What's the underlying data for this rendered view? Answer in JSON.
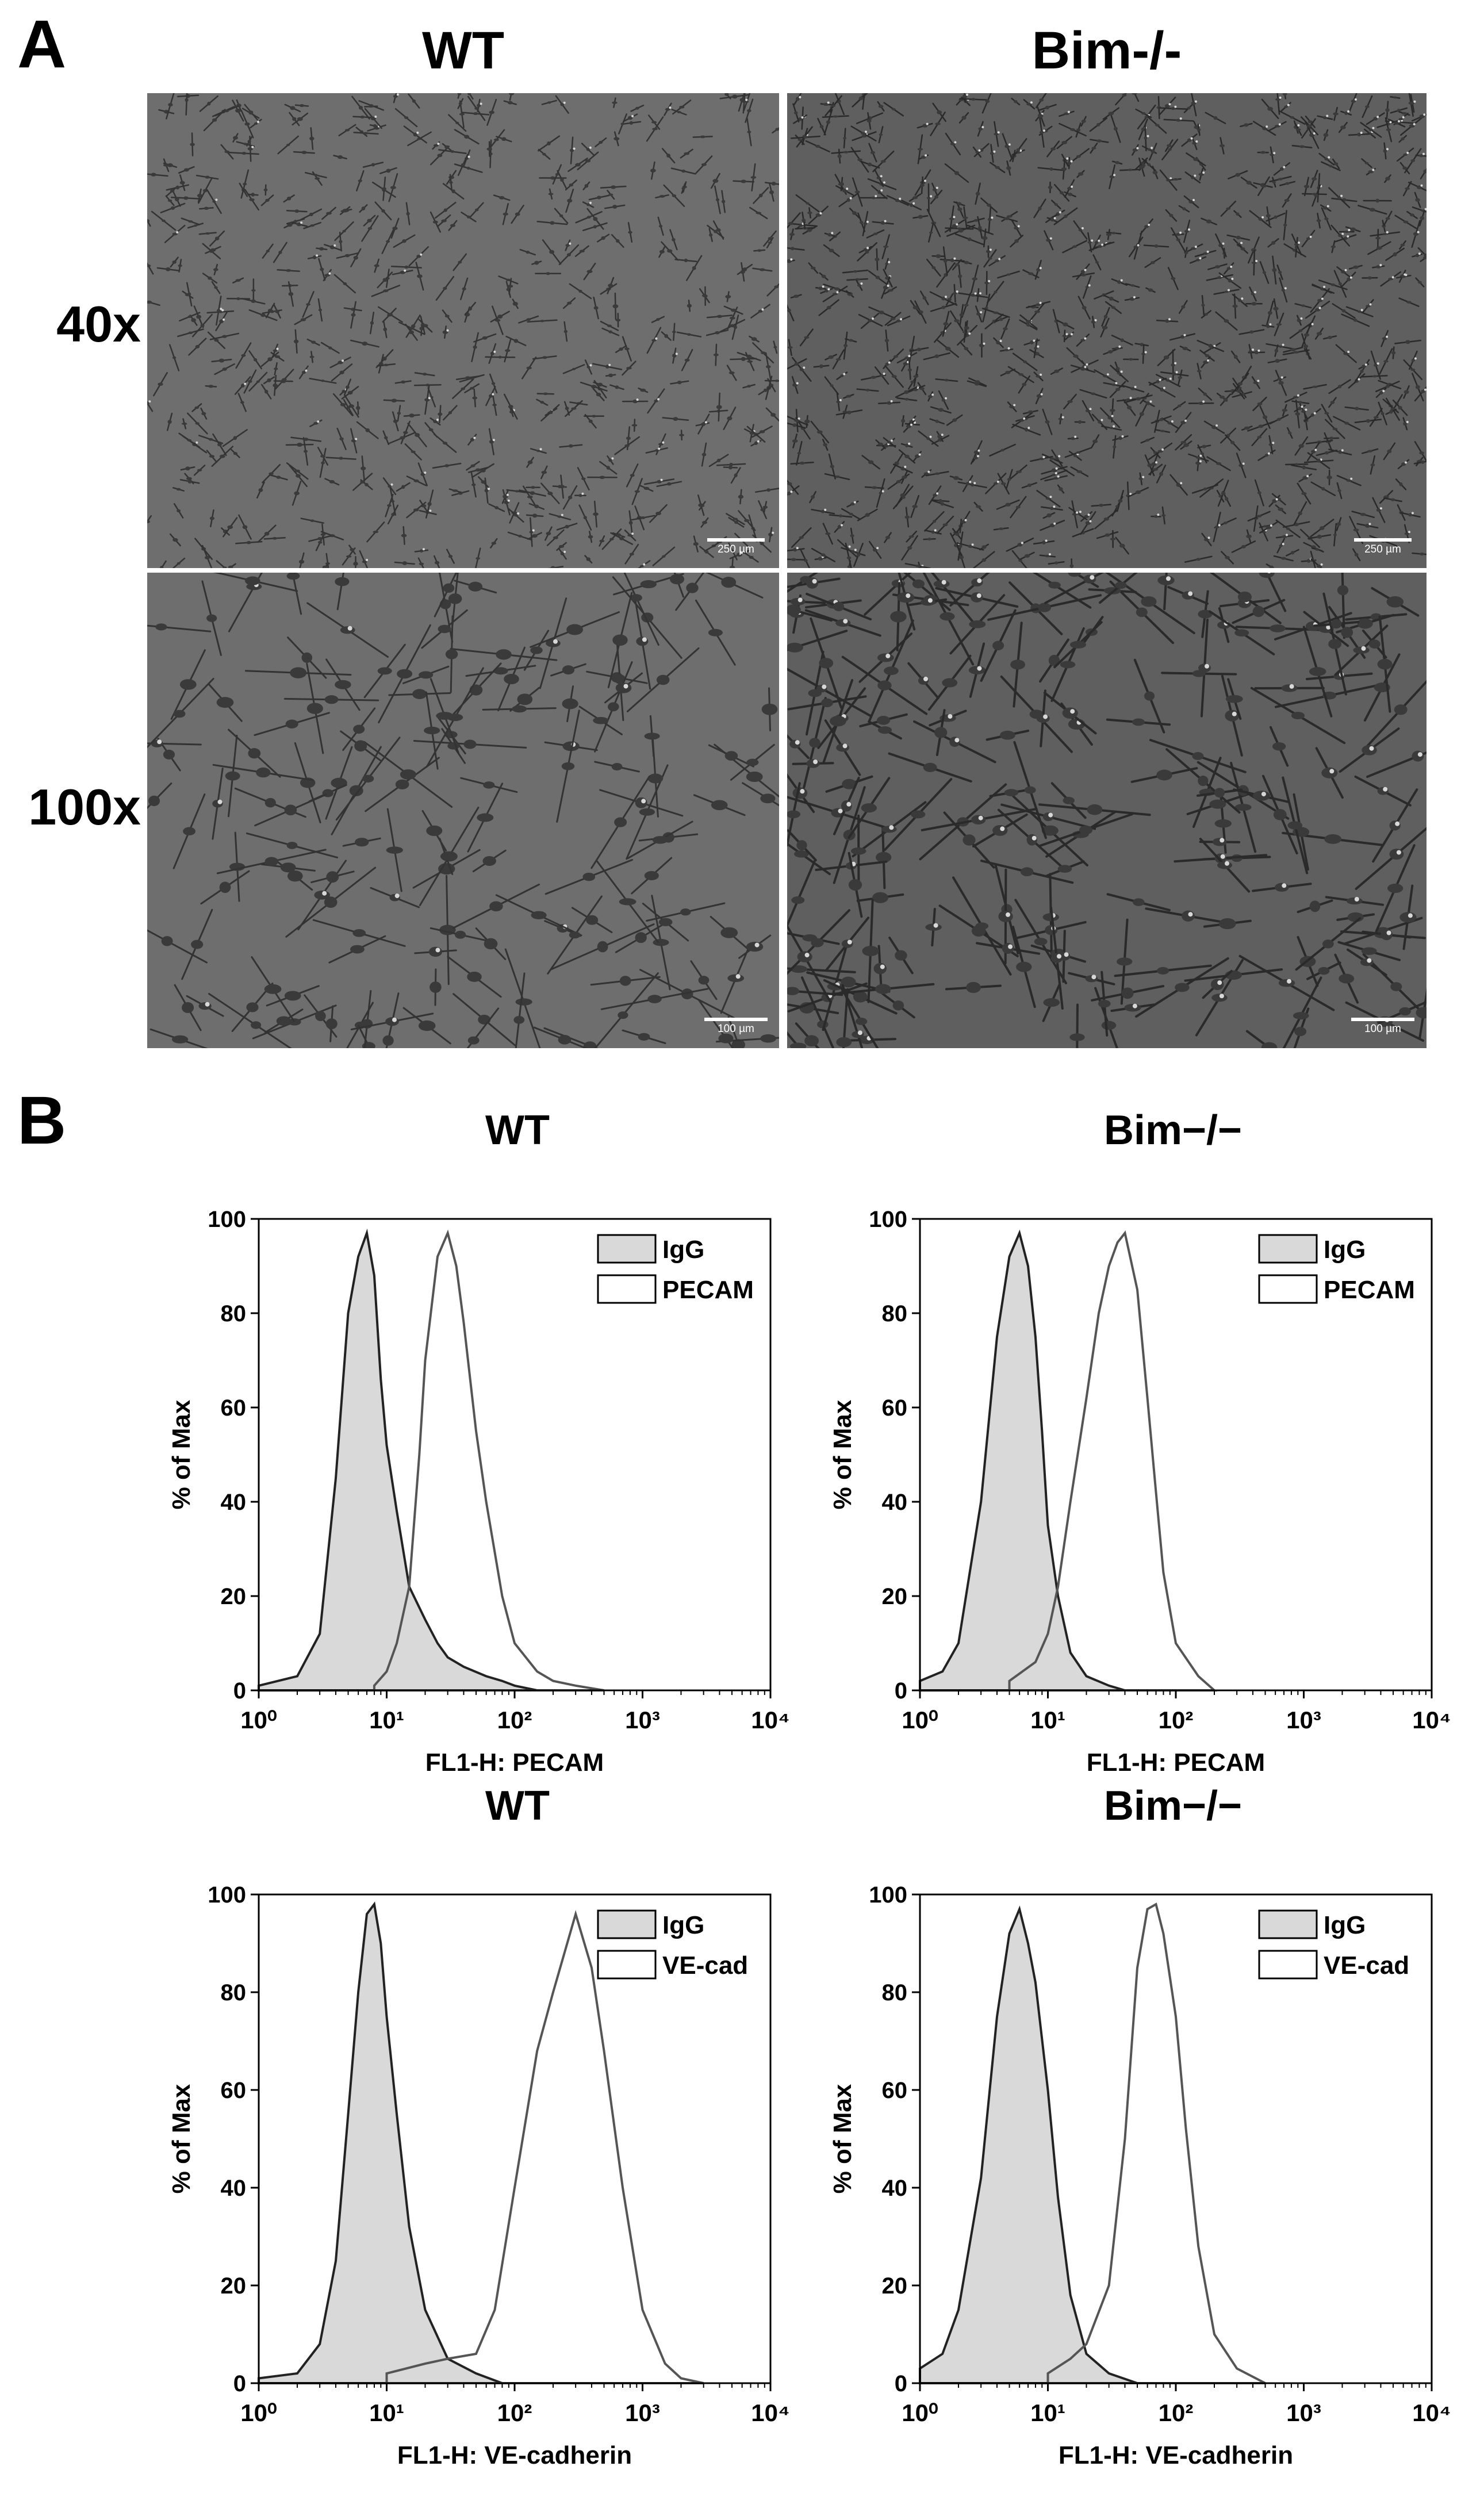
{
  "panelA": {
    "letter": "A",
    "col_titles": [
      "WT",
      "Bim-/-"
    ],
    "row_labels": [
      "40x",
      "100x"
    ],
    "images": [
      {
        "name": "wt-40x",
        "scale_label": "250 µm",
        "seed": 11,
        "density": 650,
        "style": "sparse-small"
      },
      {
        "name": "bim-40x",
        "scale_label": "250 µm",
        "seed": 29,
        "density": 900,
        "style": "network-small"
      },
      {
        "name": "wt-100x",
        "scale_label": "100 µm",
        "seed": 43,
        "density": 170,
        "style": "sparse-large"
      },
      {
        "name": "bim-100x",
        "scale_label": "100 µm",
        "seed": 67,
        "density": 230,
        "style": "network-large"
      }
    ]
  },
  "panelB": {
    "letter": "B",
    "chart_data": [
      {
        "type": "area",
        "title": "WT",
        "xlabel": "FL1-H: PECAM",
        "ylabel": "% of Max",
        "xscale": "log",
        "xlim": [
          1,
          10000
        ],
        "ylim": [
          0,
          100
        ],
        "xticks": [
          "10⁰",
          "10¹",
          "10²",
          "10³",
          "10⁴"
        ],
        "yticks": [
          "0",
          "20",
          "40",
          "60",
          "80",
          "100"
        ],
        "legend_position": "top-right",
        "series": [
          {
            "name": "IgG",
            "fill": "#d9d9d9",
            "x": [
              1,
              2,
              3,
              4,
              5,
              6,
              7,
              8,
              9,
              10,
              12,
              15,
              20,
              25,
              30,
              40,
              60,
              80,
              100,
              150
            ],
            "y": [
              1,
              3,
              12,
              45,
              80,
              92,
              97,
              88,
              66,
              52,
              38,
              22,
              15,
              10,
              7,
              5,
              3,
              2,
              1,
              0
            ]
          },
          {
            "name": "PECAM",
            "fill": "#ffffff",
            "x": [
              8,
              10,
              12,
              15,
              18,
              20,
              25,
              30,
              35,
              40,
              50,
              60,
              80,
              100,
              150,
              200,
              300,
              500
            ],
            "y": [
              1,
              4,
              10,
              22,
              50,
              70,
              92,
              97,
              90,
              78,
              55,
              40,
              20,
              10,
              4,
              2,
              1,
              0
            ]
          }
        ]
      },
      {
        "type": "area",
        "title": "Bim−/−",
        "xlabel": "FL1-H: PECAM",
        "ylabel": "% of Max",
        "xscale": "log",
        "xlim": [
          1,
          10000
        ],
        "ylim": [
          0,
          100
        ],
        "xticks": [
          "10⁰",
          "10¹",
          "10²",
          "10³",
          "10⁴"
        ],
        "yticks": [
          "0",
          "20",
          "40",
          "60",
          "80",
          "100"
        ],
        "legend_position": "top-right",
        "series": [
          {
            "name": "IgG",
            "fill": "#d9d9d9",
            "x": [
              1,
              1.5,
              2,
              3,
              4,
              5,
              6,
              7,
              8,
              9,
              10,
              12,
              15,
              20,
              30,
              40
            ],
            "y": [
              2,
              4,
              10,
              40,
              75,
              92,
              97,
              90,
              75,
              55,
              35,
              20,
              8,
              3,
              1,
              0
            ]
          },
          {
            "name": "PECAM",
            "fill": "#ffffff",
            "x": [
              5,
              8,
              10,
              12,
              15,
              20,
              25,
              30,
              35,
              40,
              50,
              60,
              70,
              80,
              100,
              150,
              200
            ],
            "y": [
              2,
              6,
              12,
              22,
              40,
              62,
              80,
              90,
              95,
              97,
              85,
              62,
              42,
              25,
              10,
              3,
              0
            ]
          }
        ]
      },
      {
        "type": "area",
        "title": "WT",
        "xlabel": "FL1-H: VE-cadherin",
        "ylabel": "% of Max",
        "xscale": "log",
        "xlim": [
          1,
          10000
        ],
        "ylim": [
          0,
          100
        ],
        "xticks": [
          "10⁰",
          "10¹",
          "10²",
          "10³",
          "10⁴"
        ],
        "yticks": [
          "0",
          "20",
          "40",
          "60",
          "80",
          "100"
        ],
        "legend_position": "top-right",
        "series": [
          {
            "name": "IgG",
            "fill": "#d9d9d9",
            "x": [
              1,
              2,
              3,
              4,
              5,
              6,
              7,
              8,
              9,
              10,
              12,
              15,
              20,
              30,
              50,
              80
            ],
            "y": [
              1,
              2,
              8,
              25,
              55,
              80,
              96,
              98,
              90,
              75,
              55,
              32,
              15,
              5,
              2,
              0
            ]
          },
          {
            "name": "VE-cad",
            "fill": "#ffffff",
            "x": [
              10,
              20,
              30,
              50,
              70,
              100,
              150,
              200,
              300,
              400,
              500,
              700,
              1000,
              1500,
              2000,
              3000
            ],
            "y": [
              2,
              4,
              5,
              6,
              15,
              40,
              68,
              80,
              96,
              85,
              68,
              40,
              15,
              4,
              1,
              0
            ]
          }
        ]
      },
      {
        "type": "area",
        "title": "Bim−/−",
        "xlabel": "FL1-H: VE-cadherin",
        "ylabel": "% of Max",
        "xscale": "log",
        "xlim": [
          1,
          10000
        ],
        "ylim": [
          0,
          100
        ],
        "xticks": [
          "10⁰",
          "10¹",
          "10²",
          "10³",
          "10⁴"
        ],
        "yticks": [
          "0",
          "20",
          "40",
          "60",
          "80",
          "100"
        ],
        "legend_position": "top-right",
        "series": [
          {
            "name": "IgG",
            "fill": "#d9d9d9",
            "x": [
              1,
              1.5,
              2,
              3,
              4,
              5,
              6,
              7,
              8,
              10,
              12,
              15,
              20,
              30,
              50
            ],
            "y": [
              3,
              6,
              15,
              42,
              75,
              92,
              97,
              90,
              82,
              60,
              38,
              18,
              6,
              2,
              0
            ]
          },
          {
            "name": "VE-cad",
            "fill": "#ffffff",
            "x": [
              10,
              15,
              20,
              30,
              40,
              50,
              60,
              70,
              80,
              100,
              120,
              150,
              200,
              300,
              500
            ],
            "y": [
              2,
              5,
              8,
              20,
              50,
              85,
              97,
              98,
              92,
              75,
              52,
              28,
              10,
              3,
              0
            ]
          }
        ]
      }
    ]
  }
}
